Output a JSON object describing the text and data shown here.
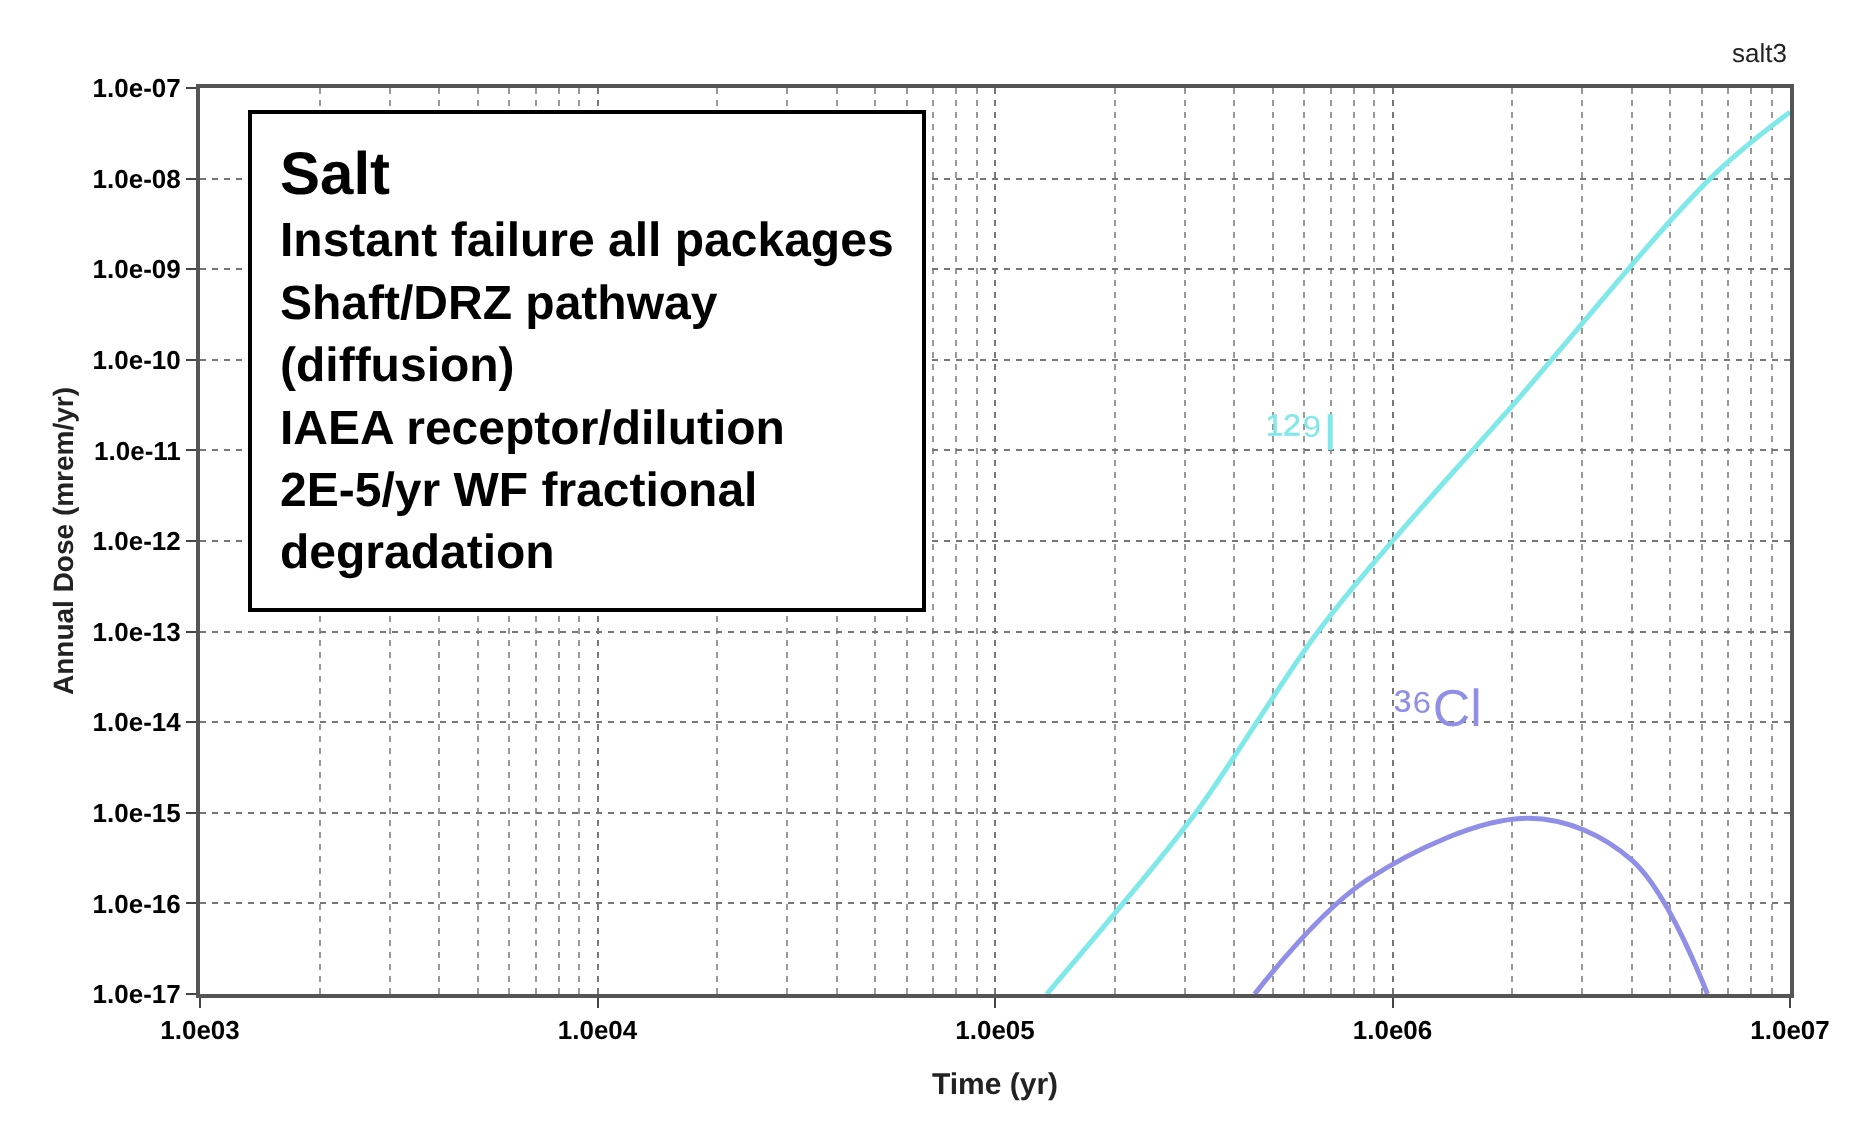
{
  "chart_data": {
    "type": "line",
    "xlabel": "Time (yr)",
    "ylabel": "Annual Dose (mrem/yr)",
    "annotations": [
      "salt3",
      "Salt\nInstant failure all packages\nShaft/DRZ pathway\n(diffusion)\nIAEA receptor/dilution\n2E-5/yr WF fractional\ndegradation"
    ],
    "log": "xy",
    "grid": true,
    "legend": false,
    "marker": "none",
    "line_style": "solid",
    "xlim": [
      1000,
      10000000
    ],
    "xticks": [
      {
        "value": 1000,
        "label": "1.0e03"
      },
      {
        "value": 10000,
        "label": "1.0e04"
      },
      {
        "value": 100000,
        "label": "1.0e05"
      },
      {
        "value": 1000000,
        "label": "1.0e06"
      },
      {
        "value": 10000000,
        "label": "1.0e07"
      }
    ],
    "ylim": [
      1e-17,
      1e-07
    ],
    "yticks": [
      {
        "value": 1e-07,
        "label": "1.0e-07"
      },
      {
        "value": 1e-08,
        "label": "1.0e-08"
      },
      {
        "value": 1e-09,
        "label": "1.0e-09"
      },
      {
        "value": 1e-10,
        "label": "1.0e-10"
      },
      {
        "value": 1e-11,
        "label": "1.0e-11"
      },
      {
        "value": 1e-12,
        "label": "1.0e-12"
      },
      {
        "value": 1e-13,
        "label": "1.0e-13"
      },
      {
        "value": 1e-14,
        "label": "1.0e-14"
      },
      {
        "value": 1e-15,
        "label": "1.0e-15"
      },
      {
        "value": 1e-16,
        "label": "1.0e-16"
      },
      {
        "value": 1e-17,
        "label": "1.0e-17"
      }
    ],
    "series": [
      {
        "name": "¹²⁹I",
        "color": "#7fe8e8",
        "x": [
          135000,
          210000,
          320000,
          650000,
          1000000,
          2000000,
          6300000,
          10000000
        ],
        "values": [
          1e-17,
          1e-16,
          1e-15,
          1e-13,
          1e-12,
          3.1e-11,
          1e-08,
          5.4e-08
        ]
      },
      {
        "name": "³⁶Cl",
        "color": "#8f8fe8",
        "x": [
          450000,
          860000,
          2200000,
          4000000,
          6200000
        ],
        "values": [
          1e-17,
          1.8e-16,
          8.7e-16,
          3e-16,
          1e-17
        ]
      }
    ]
  }
}
